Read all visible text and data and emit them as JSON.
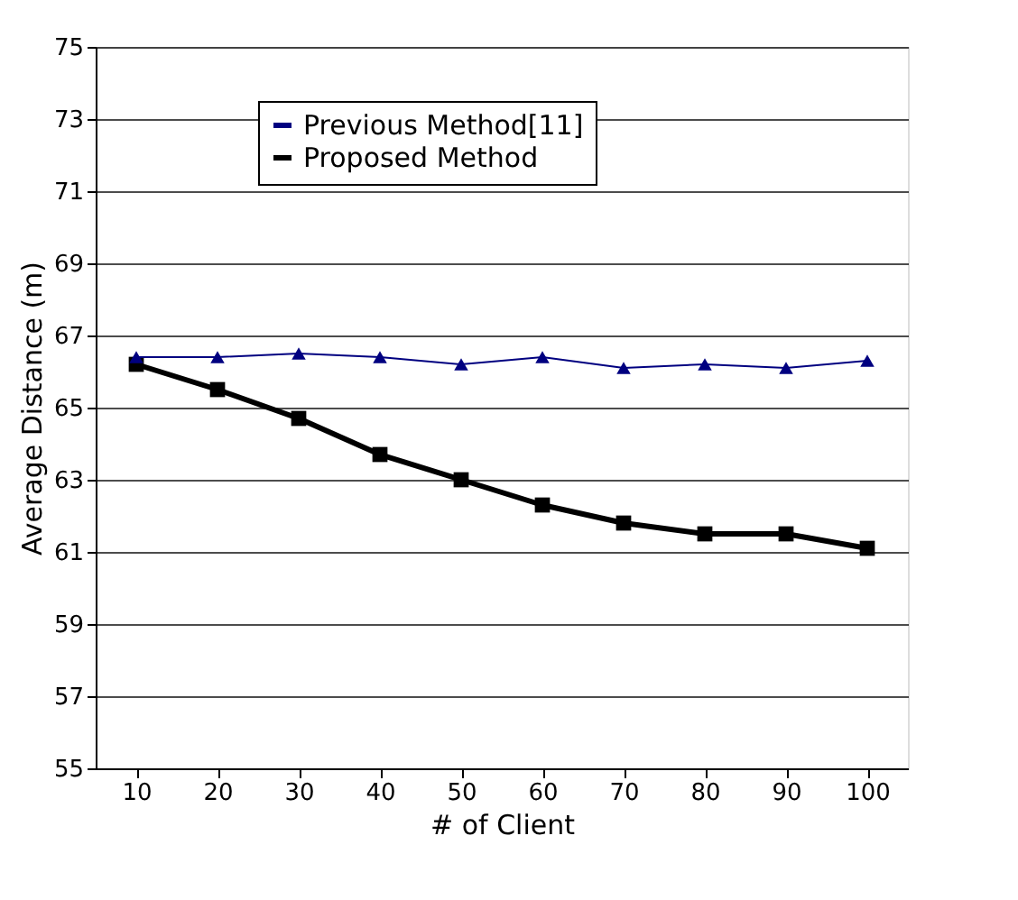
{
  "chart_data": {
    "type": "line",
    "xlabel": "# of Client",
    "ylabel": "Average  Distance  (m)",
    "categories": [
      "10",
      "20",
      "30",
      "40",
      "50",
      "60",
      "70",
      "80",
      "90",
      "100"
    ],
    "series": [
      {
        "name": "Previous Method[11]",
        "color": "#000080",
        "marker": "triangle",
        "values": [
          66.4,
          66.4,
          66.5,
          66.4,
          66.2,
          66.4,
          66.1,
          66.2,
          66.1,
          66.3
        ]
      },
      {
        "name": "Proposed Method",
        "color": "#000000",
        "marker": "square",
        "values": [
          66.2,
          65.5,
          64.7,
          63.7,
          63.0,
          62.3,
          61.8,
          61.5,
          61.5,
          61.1
        ]
      }
    ],
    "ylim": [
      55,
      75
    ],
    "yticks": [
      55,
      57,
      59,
      61,
      63,
      65,
      67,
      69,
      71,
      73,
      75
    ],
    "grid": "y",
    "legend": "top"
  }
}
